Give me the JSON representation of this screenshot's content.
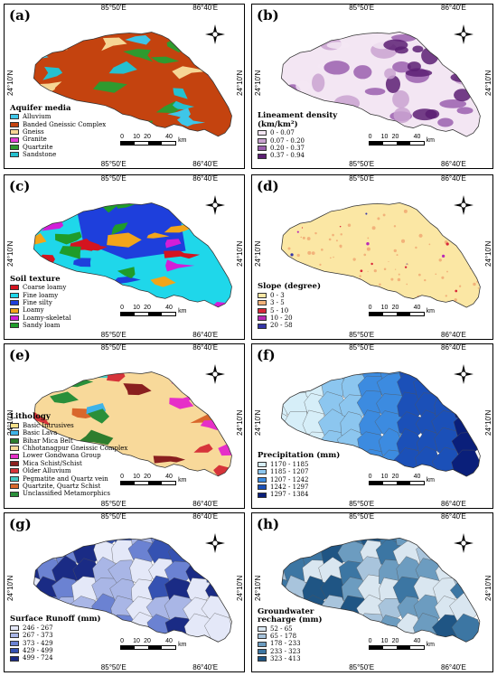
{
  "coords": {
    "lon1": "85°50'E",
    "lon2": "86°40'E",
    "lat": "24°10'N"
  },
  "scale": {
    "n0": "0",
    "n1": "10",
    "n2": "20",
    "n3": "40",
    "unit": "km"
  },
  "panels": [
    {
      "id": "a",
      "label": "(a)",
      "legend_title": "Aquifer media",
      "items": [
        {
          "label": "Alluvium",
          "color": "#3ec6e8"
        },
        {
          "label": "Banded Gneissic Complex",
          "color": "#c4430f"
        },
        {
          "label": "Gneiss",
          "color": "#f6d695"
        },
        {
          "label": "Granite",
          "color": "#e640d6"
        },
        {
          "label": "Quartzite",
          "color": "#2f9a2f"
        },
        {
          "label": "Sandstone",
          "color": "#25c0cf"
        }
      ]
    },
    {
      "id": "b",
      "label": "(b)",
      "legend_title": "Lineament density",
      "legend_unit": "(km/km²)",
      "items": [
        {
          "label": "0 - 0.07",
          "color": "#f3e6f3"
        },
        {
          "label": "0.07 - 0.20",
          "color": "#c9a2d0"
        },
        {
          "label": "0.20 - 0.37",
          "color": "#9a5fae"
        },
        {
          "label": "0.37 - 0.94",
          "color": "#5c1f73"
        }
      ]
    },
    {
      "id": "c",
      "label": "(c)",
      "legend_title": "Soil texture",
      "items": [
        {
          "label": "Coarse loamy",
          "color": "#d4141f"
        },
        {
          "label": "Fine loamy",
          "color": "#1fd7ea"
        },
        {
          "label": "Fine silty",
          "color": "#1e3fdc"
        },
        {
          "label": "Loamy",
          "color": "#f2a51a"
        },
        {
          "label": "Loamy-skeletal",
          "color": "#d21ed8"
        },
        {
          "label": "Sandy loam",
          "color": "#1f9c2a"
        }
      ]
    },
    {
      "id": "d",
      "label": "(d)",
      "legend_title": "Slope (degree)",
      "items": [
        {
          "label": "0 - 3",
          "color": "#fbe7a4"
        },
        {
          "label": "3 - 5",
          "color": "#f2b27a"
        },
        {
          "label": "5 - 10",
          "color": "#d9283a"
        },
        {
          "label": "10 - 20",
          "color": "#b82bb6"
        },
        {
          "label": "20 - 58",
          "color": "#3536a8"
        }
      ]
    },
    {
      "id": "e",
      "label": "(e)",
      "legend_title": "Lithology",
      "items": [
        {
          "label": "Basic Intrusives",
          "color": "#f3e08a"
        },
        {
          "label": "Basic Lava",
          "color": "#3fb3e8"
        },
        {
          "label": "Bihar Mica Belt",
          "color": "#2e7d2e"
        },
        {
          "label": "Chhotanagpur Gneissic Complex",
          "color": "#f8d99a"
        },
        {
          "label": "Lower Gondwana Group",
          "color": "#e62fc8"
        },
        {
          "label": "Mica Schist/Schist",
          "color": "#8a1f1f"
        },
        {
          "label": "Older Alluvium",
          "color": "#d6343a"
        },
        {
          "label": "Pegmatite and Quartz vein",
          "color": "#44c9c3"
        },
        {
          "label": "Quartzite, Quartz Schist",
          "color": "#d9672c"
        },
        {
          "label": "Unclassified Metamorphics",
          "color": "#2a8f3a"
        }
      ]
    },
    {
      "id": "f",
      "label": "(f)",
      "legend_title": "Precipitation (mm)",
      "items": [
        {
          "label": "1170 - 1185",
          "color": "#d6eef8"
        },
        {
          "label": "1185 - 1207",
          "color": "#8cc6ef"
        },
        {
          "label": "1207 - 1242",
          "color": "#3c8be0"
        },
        {
          "label": "1242 - 1297",
          "color": "#1b50b8"
        },
        {
          "label": "1297 - 1384",
          "color": "#0a1f7a"
        }
      ]
    },
    {
      "id": "g",
      "label": "(g)",
      "legend_title": "Surface Runoff (mm)",
      "items": [
        {
          "label": "246 - 267",
          "color": "#e4e8f8"
        },
        {
          "label": "267 - 373",
          "color": "#a9b6e6"
        },
        {
          "label": "373 - 429",
          "color": "#6b82d2"
        },
        {
          "label": "429 - 499",
          "color": "#3552b2"
        },
        {
          "label": "499 - 724",
          "color": "#1a2b85"
        }
      ]
    },
    {
      "id": "h",
      "label": "(h)",
      "legend_title": "Groundwater",
      "legend_unit": "recharge (mm)",
      "items": [
        {
          "label": "52 - 65",
          "color": "#d9e6f0"
        },
        {
          "label": "65 - 178",
          "color": "#a8c4dc"
        },
        {
          "label": "178 - 233",
          "color": "#6c9cc0"
        },
        {
          "label": "233 - 323",
          "color": "#3c76a3"
        },
        {
          "label": "323 - 413",
          "color": "#1f5584"
        }
      ]
    }
  ]
}
